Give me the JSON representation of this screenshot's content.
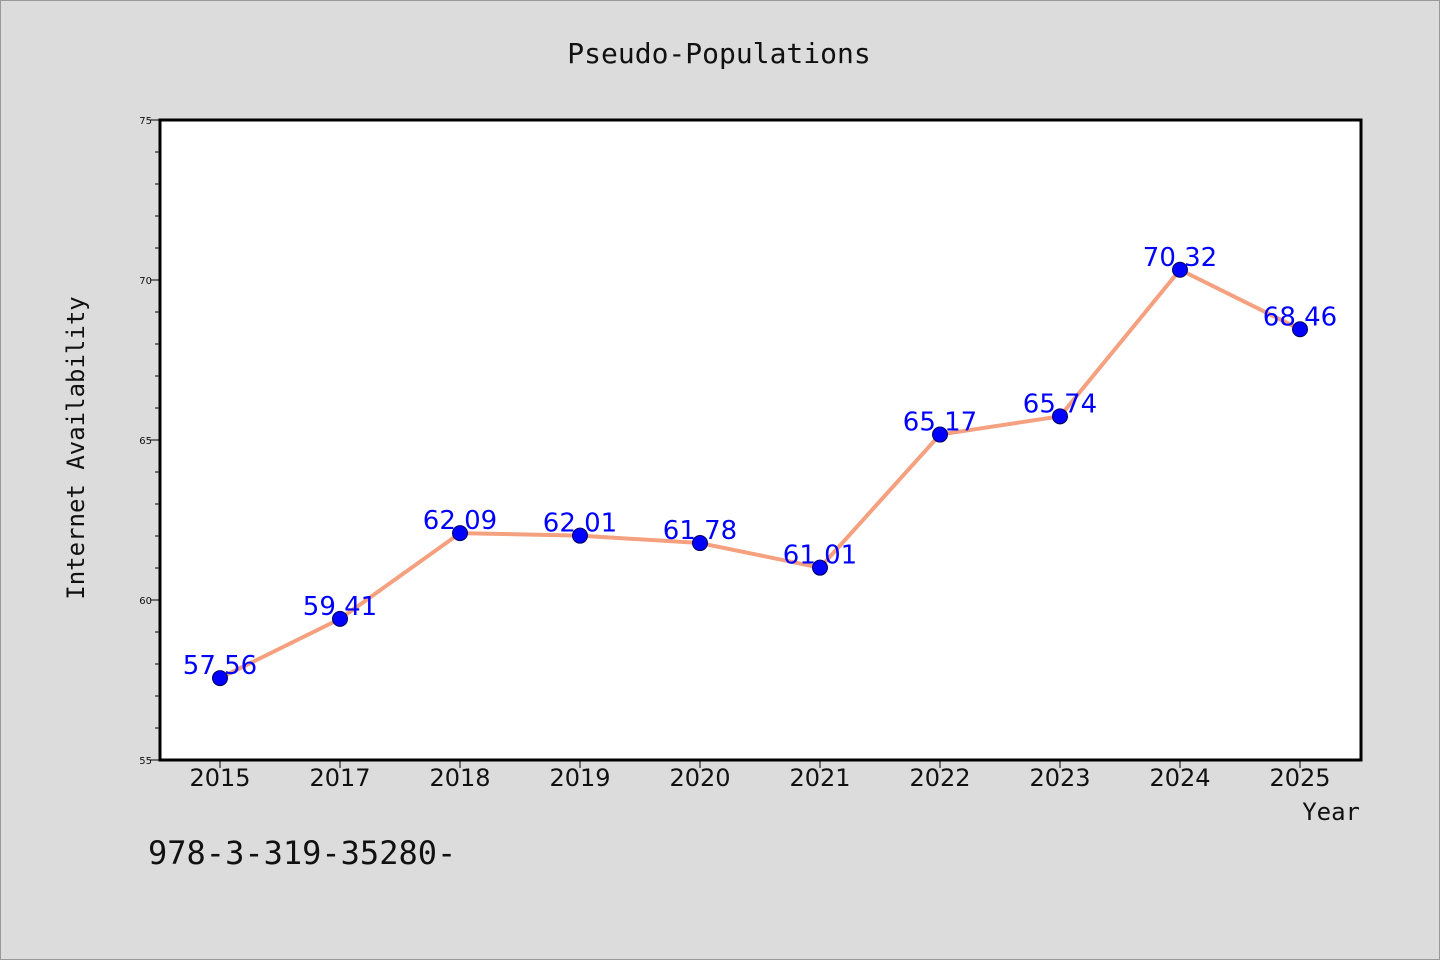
{
  "footnote": "978-3-319-35280-",
  "colors": {
    "background": "#dcdcdc",
    "plot_background": "#ffffff",
    "line": "#f5a07f",
    "marker": "#0000ff",
    "label": "#0000ff"
  },
  "chart_data": {
    "type": "line",
    "title": "Pseudo-Populations",
    "xlabel": "Year",
    "ylabel": "Internet Availability",
    "categories": [
      "2015",
      "2017",
      "2018",
      "2019",
      "2020",
      "2021",
      "2022",
      "2023",
      "2024",
      "2025"
    ],
    "series": [
      {
        "values": [
          57.56,
          59.41,
          62.09,
          62.01,
          61.78,
          61.01,
          65.17,
          65.74,
          70.32,
          68.46
        ],
        "labels": [
          "57.56",
          "59.41",
          "62.09",
          "62.01",
          "61.78",
          "61.01",
          "65.17",
          "65.74",
          "70.32",
          "68.46"
        ]
      }
    ],
    "ylim": [
      55,
      75
    ],
    "yticks": [
      "55",
      "60",
      "65",
      "70",
      "75"
    ],
    "y_minor_step": 1,
    "grid": false,
    "legend": "none"
  }
}
